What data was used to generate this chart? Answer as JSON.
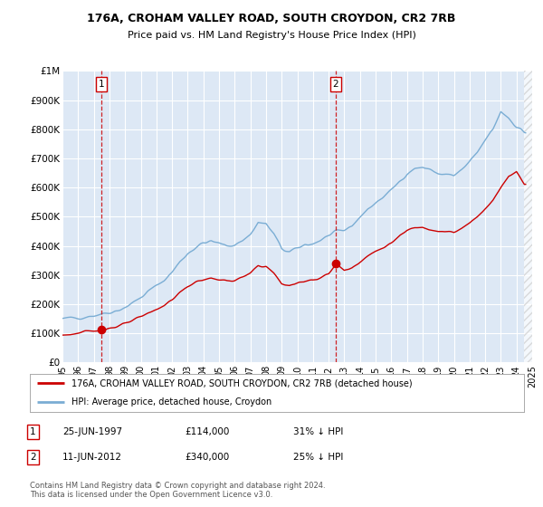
{
  "title_line1": "176A, CROHAM VALLEY ROAD, SOUTH CROYDON, CR2 7RB",
  "title_line2": "Price paid vs. HM Land Registry's House Price Index (HPI)",
  "legend_label_red": "176A, CROHAM VALLEY ROAD, SOUTH CROYDON, CR2 7RB (detached house)",
  "legend_label_blue": "HPI: Average price, detached house, Croydon",
  "footnote": "Contains HM Land Registry data © Crown copyright and database right 2024.\nThis data is licensed under the Open Government Licence v3.0.",
  "annotation1_label": "1",
  "annotation1_date": "25-JUN-1997",
  "annotation1_price": "£114,000",
  "annotation1_hpi": "31% ↓ HPI",
  "annotation2_label": "2",
  "annotation2_date": "11-JUN-2012",
  "annotation2_price": "£340,000",
  "annotation2_hpi": "25% ↓ HPI",
  "background_color": "#dde8f5",
  "red_color": "#cc0000",
  "blue_color": "#7aadd4",
  "ylim": [
    0,
    1000000
  ],
  "yticks": [
    0,
    100000,
    200000,
    300000,
    400000,
    500000,
    600000,
    700000,
    800000,
    900000,
    1000000
  ],
  "ytick_labels": [
    "£0",
    "£100K",
    "£200K",
    "£300K",
    "£400K",
    "£500K",
    "£600K",
    "£700K",
    "£800K",
    "£900K",
    "£1M"
  ],
  "sale1_x": 1997.47,
  "sale1_y": 114000,
  "sale2_x": 2012.44,
  "sale2_y": 340000,
  "vline1_x": 1997.47,
  "vline2_x": 2012.44,
  "xlim_start": 1995.0,
  "xlim_end": 2025.0,
  "hatch_start": 2024.5,
  "xtick_years": [
    1995,
    1996,
    1997,
    1998,
    1999,
    2000,
    2001,
    2002,
    2003,
    2004,
    2005,
    2006,
    2007,
    2008,
    2009,
    2010,
    2011,
    2012,
    2013,
    2014,
    2015,
    2016,
    2017,
    2018,
    2019,
    2020,
    2021,
    2022,
    2023,
    2024,
    2025
  ]
}
